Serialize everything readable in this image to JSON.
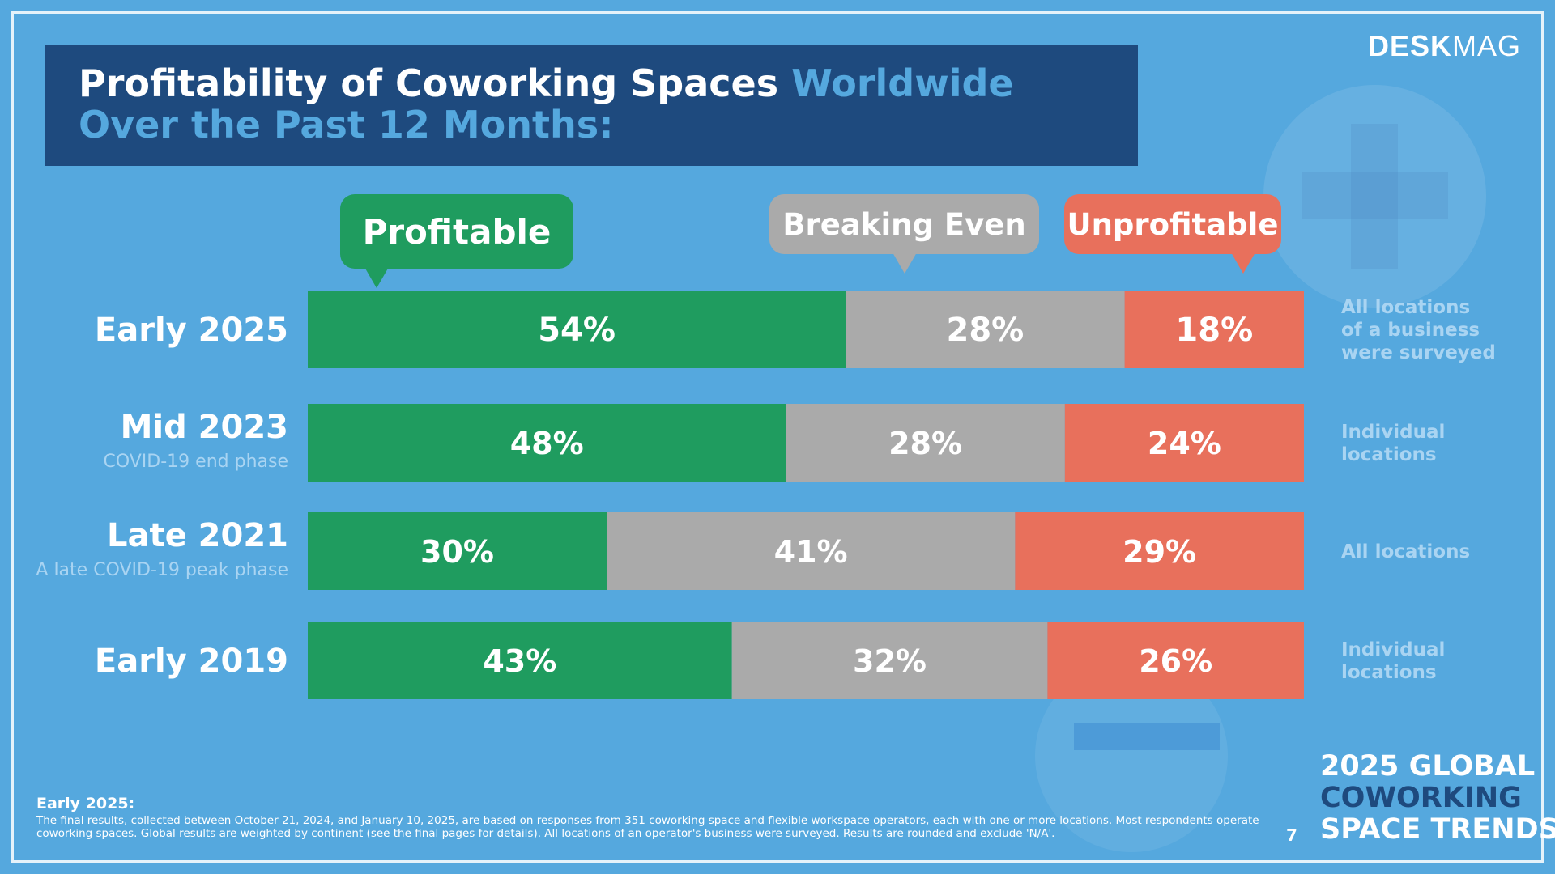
{
  "header": {
    "title_part1": "Profitability of Coworking Spaces",
    "title_part2": "Worldwide",
    "title_line2": "Over the Past 12 Months:"
  },
  "brand": {
    "bold": "DESK",
    "light": "MAG"
  },
  "legend": {
    "profitable": "Profitable",
    "breaking_even": "Breaking Even",
    "unprofitable": "Unprofitable"
  },
  "colors": {
    "profitable": "#1f9c5f",
    "breaking_even": "#aaaaaa",
    "unprofitable": "#e8705c",
    "background": "#55a8de",
    "title_box": "#1e4a7e"
  },
  "chart_data": {
    "type": "bar",
    "orientation": "horizontal",
    "stacked": true,
    "categories": [
      "Early 2025",
      "Mid 2023",
      "Late 2021",
      "Early 2019"
    ],
    "category_subtitles": [
      "",
      "COVID-19 end phase",
      "A late COVID-19 peak phase",
      ""
    ],
    "series": [
      {
        "name": "Profitable",
        "values": [
          54,
          48,
          30,
          43
        ],
        "color": "#1f9c5f"
      },
      {
        "name": "Breaking Even",
        "values": [
          28,
          28,
          41,
          32
        ],
        "color": "#aaaaaa"
      },
      {
        "name": "Unprofitable",
        "values": [
          18,
          24,
          29,
          26
        ],
        "color": "#e8705c"
      }
    ],
    "value_suffix": "%",
    "xlim": [
      0,
      100
    ],
    "row_notes": [
      [
        "All locations",
        "of a business",
        "were surveyed"
      ],
      [
        "Individual",
        "locations"
      ],
      [
        "All locations"
      ],
      [
        "Individual",
        "locations"
      ]
    ]
  },
  "footer": {
    "title": "Early 2025:",
    "text": "The final results, collected between October 21, 2024, and January 10, 2025, are based on responses from 351 coworking space and flexible workspace operators, each with one or more locations. Most respondents operate coworking spaces. Global results are weighted by continent (see the final pages for details). All locations of an operator's business were surveyed. Results are rounded and exclude 'N/A'.",
    "page_number": "7"
  },
  "report_title": {
    "line1": "2025 GLOBAL",
    "line2": "COWORKING",
    "line3": "SPACE TRENDS"
  }
}
